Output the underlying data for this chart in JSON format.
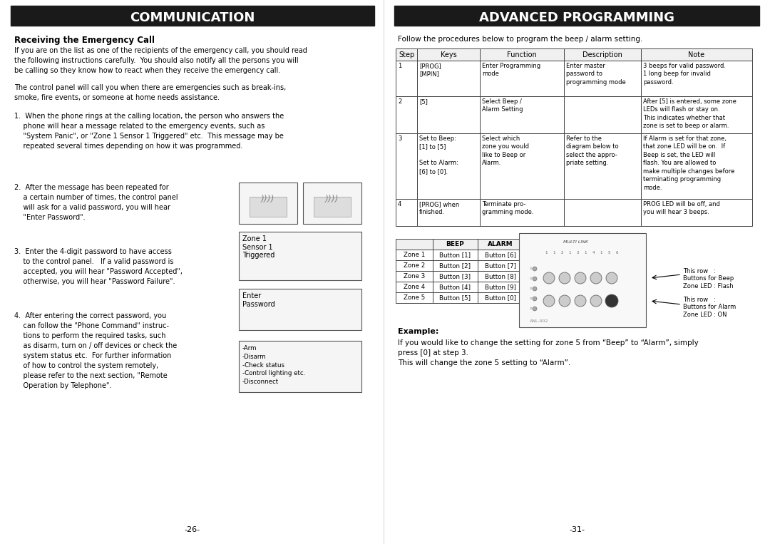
{
  "bg_color": "#ffffff",
  "page_width": 10.8,
  "page_height": 7.63,
  "left_title": "COMMUNICATION",
  "right_title": "ADVANCED PROGRAMMING",
  "title_bg": "#1a1a1a",
  "title_color": "#ffffff",
  "subtitle_left": "Receiving the Emergency Call",
  "left_para1": "If you are on the list as one of the recipients of the emergency call, you should read\nthe following instructions carefully.  You should also notify all the persons you will\nbe calling so they know how to react when they receive the emergency call.",
  "left_para2": "The control panel will call you when there are emergencies such as break-ins,\nsmoke, fire events, or someone at home needs assistance.",
  "left_item1": "1.  When the phone rings at the calling location, the person who answers the\n    phone will hear a message related to the emergency events, such as\n    \"System Panic\", or \"Zone 1 Sensor 1 Triggered\" etc.  This message may be\n    repeated several times depending on how it was programmed.",
  "left_item2": "2.  After the message has been repeated for\n    a certain number of times, the control panel\n    will ask for a valid password, you will hear\n    \"Enter Password\".",
  "left_item3": "3.  Enter the 4-digit password to have access\n    to the control panel.   If a valid password is\n    accepted, you will hear \"Password Accepted\",\n    otherwise, you will hear \"Password Failure\".",
  "left_item4": "4.  After entering the correct password, you\n    can follow the \"Phone Command\" instruc-\n    tions to perform the required tasks, such\n    as disarm, turn on / off devices or check the\n    system status etc.  For further information\n    of how to control the system remotely,\n    please refer to the next section, \"Remote\n    Operation by Telephone\".",
  "page_left": "-26-",
  "page_right": "-31-",
  "right_intro": "Follow the procedures below to program the beep / alarm setting.",
  "table_headers": [
    "Step",
    "Keys",
    "Function",
    "Description",
    "Note"
  ],
  "table_rows": [
    [
      "1",
      "[PROG]\n[MPIN]",
      "Enter Programming\nmode",
      "Enter master\npassword to\nprogramming mode",
      "3 beeps for valid password.\n1 long beep for invalid\npassword."
    ],
    [
      "2",
      "[5]",
      "Select Beep /\nAlarm Setting",
      "",
      "After [5] is entered, some zone\nLEDs will flash or stay on.\nThis indicates whether that\nzone is set to beep or alarm."
    ],
    [
      "3",
      "Set to Beep:\n[1] to [5]\n\nSet to Alarm:\n[6] to [0].",
      "Select which\nzone you would\nlike to Beep or\nAlarm.",
      "Refer to the\ndiagram below to\nselect the appro-\npriate setting.",
      "If Alarm is set for that zone,\nthat zone LED will be on.  If\nBeep is set, the LED will\nflash. You are allowed to\nmake multiple changes before\nterminating programming\nmode."
    ],
    [
      "4",
      "[PROG] when\nfinished.",
      "Terminate pro-\ngramming mode.",
      "",
      "PROG LED will be off, and\nyou will hear 3 beeps."
    ]
  ],
  "zone_table_headers": [
    "",
    "BEEP",
    "ALARM"
  ],
  "zone_table_rows": [
    [
      "Zone 1",
      "Button [1]",
      "Button [6]"
    ],
    [
      "Zone 2",
      "Button [2]",
      "Button [7]"
    ],
    [
      "Zone 3",
      "Button [3]",
      "Button [8]"
    ],
    [
      "Zone 4",
      "Button [4]",
      "Button [9]"
    ],
    [
      "Zone 5",
      "Button [5]",
      "Button [0]"
    ]
  ],
  "right_label1": "This row   :\nButtons for Beep\nZone LED : Flash",
  "right_label2": "This row   :\nButtons for Alarm\nZone LED : ON",
  "example_title": "Example:",
  "example_text1": "If you would like to change the setting for zone 5 from “Beep” to “Alarm”, simply",
  "example_text2": "press [0] at step 3.",
  "example_text3": "This will change the zone 5 setting to “Alarm”."
}
